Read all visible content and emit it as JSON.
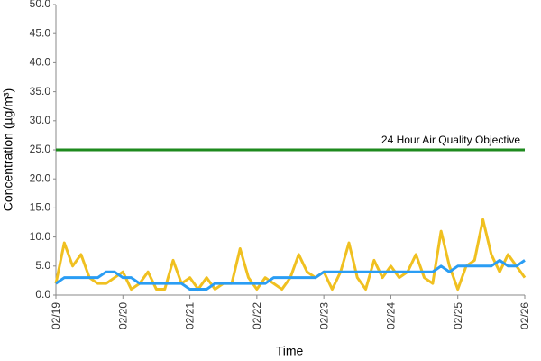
{
  "chart_data": {
    "type": "line",
    "y_axis_label": "Concentration (µg/m³)",
    "x_axis_label": "Time",
    "x": [
      0,
      0.125,
      0.25,
      0.375,
      0.5,
      0.625,
      0.75,
      0.875,
      1,
      1.125,
      1.25,
      1.375,
      1.5,
      1.625,
      1.75,
      1.875,
      2,
      2.125,
      2.25,
      2.375,
      2.5,
      2.625,
      2.75,
      2.875,
      3,
      3.125,
      3.25,
      3.375,
      3.5,
      3.625,
      3.75,
      3.875,
      4,
      4.125,
      4.25,
      4.375,
      4.5,
      4.625,
      4.75,
      4.875,
      5,
      5.125,
      5.25,
      5.375,
      5.5,
      5.625,
      5.75,
      5.875,
      6,
      6.125,
      6.25,
      6.375,
      6.5,
      6.625,
      6.75,
      6.875,
      7
    ],
    "series": [
      {
        "color": "#f0c020",
        "values": [
          2,
          9,
          5,
          7,
          3,
          2,
          2,
          3,
          4,
          1,
          2,
          4,
          1,
          1,
          6,
          2,
          3,
          1,
          3,
          1,
          2,
          2,
          8,
          3,
          1,
          3,
          2,
          1,
          3,
          7,
          4,
          3,
          4,
          1,
          4,
          9,
          3,
          1,
          6,
          3,
          5,
          3,
          4,
          7,
          3,
          2,
          11,
          5,
          1,
          5,
          6,
          13,
          7,
          4,
          7,
          5,
          3
        ]
      },
      {
        "color": "#2a9df4",
        "values": [
          2,
          3,
          3,
          3,
          3,
          3,
          4,
          4,
          3,
          3,
          2,
          2,
          2,
          2,
          2,
          2,
          1,
          1,
          1,
          2,
          2,
          2,
          2,
          2,
          2,
          2,
          3,
          3,
          3,
          3,
          3,
          3,
          4,
          4,
          4,
          4,
          4,
          4,
          4,
          4,
          4,
          4,
          4,
          4,
          4,
          4,
          5,
          4,
          5,
          5,
          5,
          5,
          5,
          6,
          5,
          5,
          6
        ]
      }
    ],
    "reference_line": {
      "value": 25,
      "label": "24 Hour Air Quality Objective",
      "color": "#1e8a1e"
    },
    "xlim": [
      0,
      7
    ],
    "xticks": [
      {
        "value": 0,
        "label": "02/19"
      },
      {
        "value": 1,
        "label": "02/20"
      },
      {
        "value": 2,
        "label": "02/21"
      },
      {
        "value": 3,
        "label": "02/22"
      },
      {
        "value": 4,
        "label": "02/23"
      },
      {
        "value": 5,
        "label": "02/24"
      },
      {
        "value": 6,
        "label": "02/25"
      },
      {
        "value": 7,
        "label": "02/26"
      }
    ],
    "ylim": [
      0,
      50
    ],
    "yticks": [
      {
        "value": 0,
        "label": "0.0"
      },
      {
        "value": 5,
        "label": "5.0"
      },
      {
        "value": 10,
        "label": "10.0"
      },
      {
        "value": 15,
        "label": "15.0"
      },
      {
        "value": 20,
        "label": "20.0"
      },
      {
        "value": 25,
        "label": "25.0"
      },
      {
        "value": 30,
        "label": "30.0"
      },
      {
        "value": 35,
        "label": "35.0"
      },
      {
        "value": 40,
        "label": "40.0"
      },
      {
        "value": 45,
        "label": "45.0"
      },
      {
        "value": 50,
        "label": "50.0"
      }
    ]
  }
}
